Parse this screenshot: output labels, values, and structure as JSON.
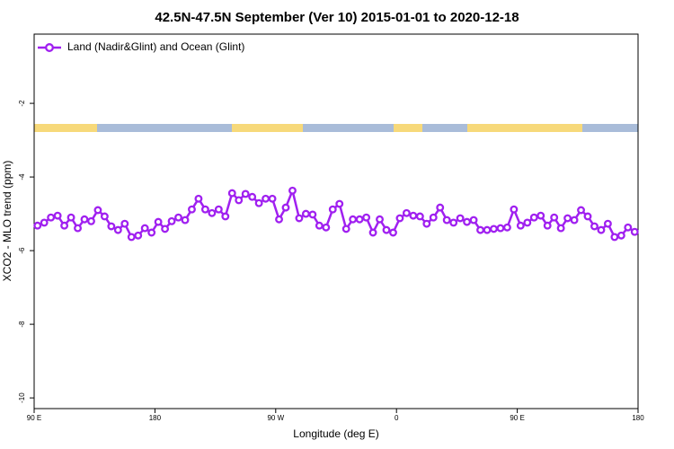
{
  "chart_data": {
    "type": "line",
    "title": "42.5N-47.5N September (Ver 10)   2015-01-01 to 2020-12-18",
    "x_label": "Longitude (deg E)",
    "y_label": "XCO2 - MLO trend (ppm)",
    "x": [
      92.5,
      97.5,
      102.5,
      107.5,
      112.5,
      117.5,
      122.5,
      127.5,
      132.5,
      137.5,
      142.5,
      147.5,
      152.5,
      157.5,
      162.5,
      167.5,
      172.5,
      177.5,
      182.5,
      187.5,
      192.5,
      197.5,
      202.5,
      207.5,
      212.5,
      217.5,
      222.5,
      227.5,
      232.5,
      237.5,
      242.5,
      247.5,
      252.5,
      257.5,
      262.5,
      267.5,
      272.5,
      277.5,
      282.5,
      287.5,
      292.5,
      297.5,
      302.5,
      307.5,
      312.5,
      317.5,
      322.5,
      327.5,
      332.5,
      337.5,
      342.5,
      347.5,
      352.5,
      357.5,
      362.5,
      367.5,
      372.5,
      377.5,
      382.5,
      387.5,
      392.5,
      397.5,
      402.5,
      407.5,
      412.5,
      417.5,
      422.5,
      427.5,
      432.5,
      437.5,
      442.5,
      447.5,
      452.5,
      457.5,
      462.5,
      467.5,
      472.5,
      477.5,
      482.5,
      487.5,
      492.5,
      497.5,
      502.5,
      507.5,
      512.5,
      517.5,
      522.5,
      527.5,
      532.5,
      537.5
    ],
    "series": [
      {
        "name": "Land (Nadir&Glint) and Ocean (Glint)",
        "color": "#a020f0",
        "values": [
          -5.32,
          -5.24,
          -5.1,
          -5.05,
          -5.32,
          -5.1,
          -5.39,
          -5.15,
          -5.2,
          -4.9,
          -5.07,
          -5.34,
          -5.44,
          -5.27,
          -5.63,
          -5.59,
          -5.39,
          -5.51,
          -5.22,
          -5.41,
          -5.2,
          -5.1,
          -5.17,
          -4.88,
          -4.59,
          -4.88,
          -4.98,
          -4.88,
          -5.07,
          -4.44,
          -4.63,
          -4.46,
          -4.54,
          -4.71,
          -4.59,
          -4.59,
          -5.15,
          -4.83,
          -4.37,
          -5.12,
          -5.0,
          -5.02,
          -5.32,
          -5.37,
          -4.88,
          -4.73,
          -5.41,
          -5.15,
          -5.15,
          -5.1,
          -5.51,
          -5.15,
          -5.44,
          -5.51,
          -5.12,
          -4.98,
          -5.05,
          -5.07,
          -5.27,
          -5.1,
          -4.83,
          -5.17,
          -5.24,
          -5.12,
          -5.22,
          -5.17,
          -5.44,
          -5.44,
          -5.41,
          -5.39,
          -5.37,
          -4.88,
          -5.32,
          -5.24,
          -5.1,
          -5.05,
          -5.32,
          -5.1,
          -5.39,
          -5.12,
          -5.17,
          -4.9,
          -5.07,
          -5.34,
          -5.44,
          -5.27,
          -5.63,
          -5.59,
          -5.37,
          -5.49
        ]
      }
    ],
    "xlim": [
      90,
      540
    ],
    "xticks": [
      {
        "value": 90,
        "label": "90 E"
      },
      180,
      {
        "value": 270,
        "label": "90 W"
      },
      {
        "value": 360,
        "label": "0"
      },
      {
        "value": 450,
        "label": "90 E"
      },
      {
        "value": 540,
        "label": "180"
      }
    ],
    "ylim": [
      -10.29,
      -0.12
    ],
    "yticks": [
      -2,
      -4,
      -6,
      -8,
      -10
    ],
    "legend": "top-left"
  }
}
